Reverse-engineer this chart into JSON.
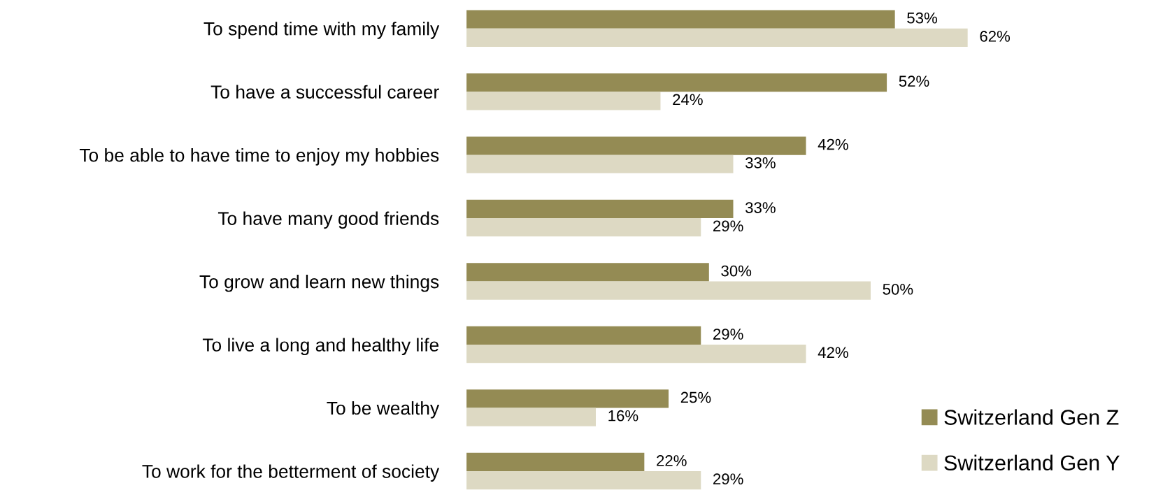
{
  "chart_data": {
    "type": "bar",
    "orientation": "horizontal",
    "categories": [
      "To spend time with my family",
      "To have a successful career",
      "To be able to have time to enjoy my hobbies",
      "To have many good friends",
      "To grow and learn new things",
      "To live a long and healthy life",
      "To be wealthy",
      "To work for the betterment of society"
    ],
    "series": [
      {
        "name": "Switzerland Gen Z",
        "color": "#948b54",
        "values": [
          53,
          52,
          42,
          33,
          30,
          29,
          25,
          22
        ],
        "value_labels": [
          "53%",
          "52%",
          "42%",
          "33%",
          "30%",
          "29%",
          "25%",
          "22%"
        ]
      },
      {
        "name": "Switzerland Gen Y",
        "color": "#ddd9c3",
        "values": [
          62,
          24,
          33,
          29,
          50,
          42,
          16,
          29
        ],
        "value_labels": [
          "62%",
          "24%",
          "33%",
          "29%",
          "50%",
          "42%",
          "16%",
          "29%"
        ]
      }
    ],
    "legend": "bottom right",
    "grid": false
  }
}
